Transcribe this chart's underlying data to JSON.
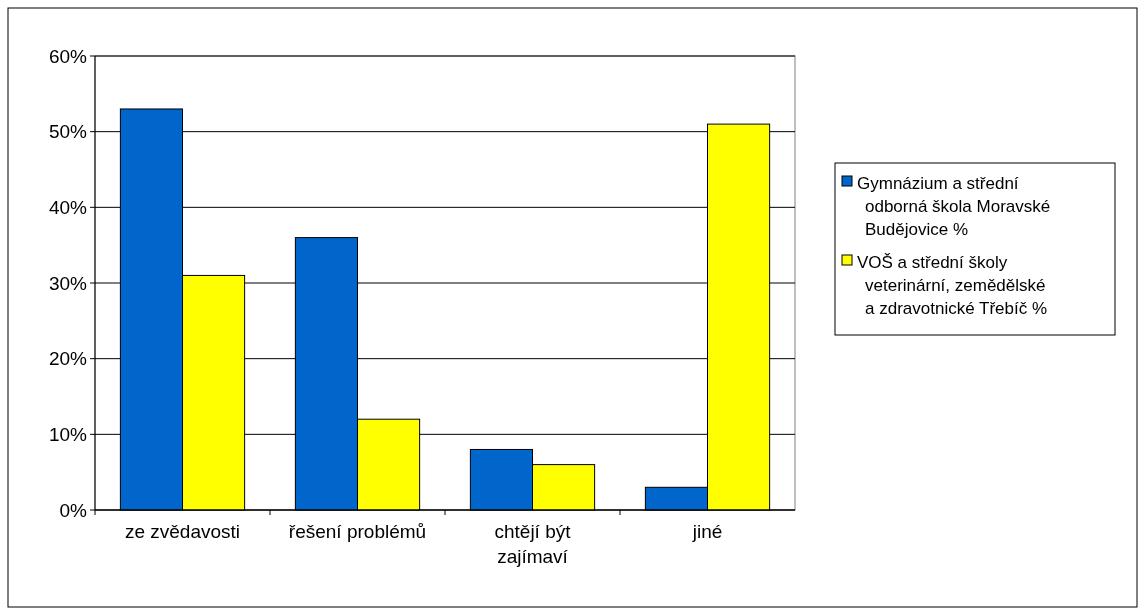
{
  "chart_data": {
    "type": "bar",
    "categories": [
      "ze zvědavosti",
      "řešení problémů",
      "chtějí být zajímaví",
      "jiné"
    ],
    "series": [
      {
        "name": "Gymnázium a střední odborná škola Moravské Budějovice %",
        "color": "#0066cc",
        "values": [
          53,
          36,
          8,
          3
        ]
      },
      {
        "name": "VOŠ a střední školy veterinární, zemědělské a zdravotnické Třebíč %",
        "color": "#ffff00",
        "values": [
          31,
          12,
          6,
          51
        ]
      }
    ],
    "ylim": [
      0,
      60
    ],
    "yticks": [
      {
        "value": 0,
        "label": "0%"
      },
      {
        "value": 10,
        "label": "10%"
      },
      {
        "value": 20,
        "label": "20%"
      },
      {
        "value": 30,
        "label": "30%"
      },
      {
        "value": 40,
        "label": "40%"
      },
      {
        "value": 50,
        "label": "50%"
      },
      {
        "value": 60,
        "label": "60%"
      }
    ],
    "grid": "y",
    "legend": "right"
  }
}
